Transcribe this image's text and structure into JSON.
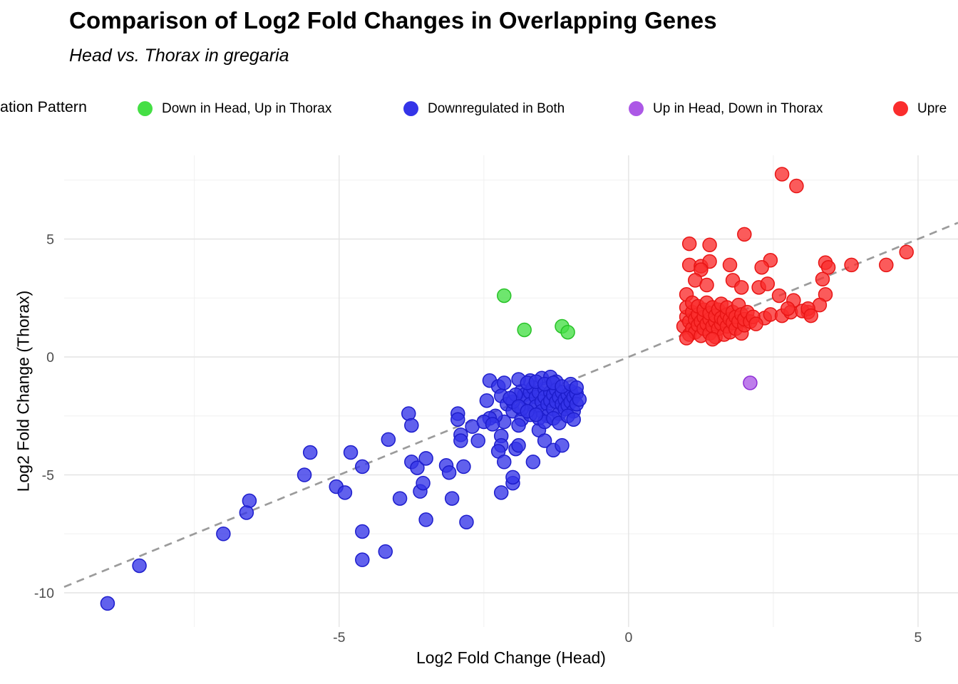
{
  "header": {
    "title": "Comparison of Log2 Fold Changes in Overlapping Genes",
    "subtitle": "Head vs. Thorax in gregaria"
  },
  "legend": {
    "title": "ation Pattern",
    "items": [
      {
        "label": "Down in Head, Up in Thorax",
        "color": "#45df45"
      },
      {
        "label": "Downregulated in Both",
        "color": "#3434e8"
      },
      {
        "label": "Up in Head, Down in Thorax",
        "color": "#ac58e6"
      },
      {
        "label": "Upre",
        "color": "#fa2d2d"
      }
    ]
  },
  "chart_data": {
    "type": "scatter",
    "title": "Comparison of Log2 Fold Changes in Overlapping Genes",
    "subtitle": "Head vs. Thorax in gregaria",
    "xlabel": "Log2 Fold Change (Head)",
    "ylabel": "Log2 Fold Change (Thorax)",
    "xlim": [
      -9.75,
      5.69
    ],
    "ylim": [
      -11.45,
      8.55
    ],
    "x_ticks": [
      -5,
      0,
      5
    ],
    "x_tick_labels": [
      "-5",
      "0",
      "5"
    ],
    "y_ticks": [
      5,
      0,
      -5,
      -10
    ],
    "y_tick_labels": [
      "5",
      "0",
      "-5",
      "-10"
    ],
    "x_minor": [
      -7.5,
      -2.5,
      2.5
    ],
    "y_minor": [
      7.5,
      2.5,
      -2.5,
      -7.5
    ],
    "grid": true,
    "legend_position": "top",
    "legend_title_visible": "ation Pattern",
    "reference_line": {
      "equation": "y = x",
      "style": "dashed",
      "color": "#9b9b9b"
    },
    "series": [
      {
        "name": "Down in Head, Up in Thorax",
        "color": "#45df45",
        "stroke": "#28c228",
        "points": [
          [
            -2.15,
            2.6
          ],
          [
            -1.8,
            1.15
          ],
          [
            -1.15,
            1.3
          ],
          [
            -1.05,
            1.05
          ]
        ]
      },
      {
        "name": "Downregulated in Both",
        "color": "#3434e8",
        "stroke": "#1d1dcc",
        "points": [
          [
            -9.0,
            -10.45
          ],
          [
            -8.45,
            -8.85
          ],
          [
            -7.0,
            -7.5
          ],
          [
            -6.55,
            -6.1
          ],
          [
            -6.6,
            -6.6
          ],
          [
            -5.5,
            -4.05
          ],
          [
            -5.6,
            -5.0
          ],
          [
            -5.05,
            -5.5
          ],
          [
            -4.9,
            -5.75
          ],
          [
            -4.8,
            -4.05
          ],
          [
            -4.6,
            -4.65
          ],
          [
            -4.6,
            -7.4
          ],
          [
            -4.6,
            -8.6
          ],
          [
            -4.2,
            -8.25
          ],
          [
            -3.95,
            -6.0
          ],
          [
            -3.6,
            -5.7
          ],
          [
            -3.05,
            -6.0
          ],
          [
            -3.5,
            -6.9
          ],
          [
            -2.8,
            -7.0
          ],
          [
            -2.2,
            -5.75
          ],
          [
            -2.0,
            -5.35
          ],
          [
            -4.15,
            -3.5
          ],
          [
            -3.8,
            -2.4
          ],
          [
            -3.75,
            -2.9
          ],
          [
            -3.75,
            -4.45
          ],
          [
            -3.65,
            -4.7
          ],
          [
            -3.5,
            -4.3
          ],
          [
            -3.55,
            -5.35
          ],
          [
            -3.15,
            -4.6
          ],
          [
            -3.1,
            -4.9
          ],
          [
            -2.85,
            -4.65
          ],
          [
            -2.95,
            -2.4
          ],
          [
            -2.95,
            -2.65
          ],
          [
            -2.9,
            -3.3
          ],
          [
            -2.9,
            -3.55
          ],
          [
            -2.7,
            -2.95
          ],
          [
            -2.6,
            -3.55
          ],
          [
            -2.45,
            -1.85
          ],
          [
            -2.4,
            -1.0
          ],
          [
            -2.25,
            -1.25
          ],
          [
            -2.15,
            -1.1
          ],
          [
            -2.2,
            -1.65
          ],
          [
            -2.1,
            -2.0
          ],
          [
            -2.0,
            -2.3
          ],
          [
            -2.15,
            -2.75
          ],
          [
            -2.2,
            -3.35
          ],
          [
            -2.2,
            -3.75
          ],
          [
            -2.25,
            -4.0
          ],
          [
            -2.15,
            -4.45
          ],
          [
            -1.95,
            -3.9
          ],
          [
            -1.9,
            -3.75
          ],
          [
            -1.85,
            -2.65
          ],
          [
            -1.9,
            -2.9
          ],
          [
            -1.7,
            -1.0
          ],
          [
            -1.5,
            -0.9
          ],
          [
            -1.35,
            -0.85
          ],
          [
            -1.25,
            -1.05
          ],
          [
            -1.55,
            -3.1
          ],
          [
            -1.45,
            -3.55
          ],
          [
            -1.3,
            -3.95
          ],
          [
            -1.15,
            -3.75
          ],
          [
            -1.65,
            -4.45
          ],
          [
            -2.0,
            -5.1
          ],
          [
            -1.85,
            -1.45
          ],
          [
            -1.8,
            -1.6
          ],
          [
            -1.75,
            -1.8
          ],
          [
            -1.7,
            -1.5
          ],
          [
            -1.7,
            -2.0
          ],
          [
            -1.65,
            -1.3
          ],
          [
            -1.6,
            -1.7
          ],
          [
            -1.6,
            -2.1
          ],
          [
            -1.55,
            -1.5
          ],
          [
            -1.5,
            -1.9
          ],
          [
            -1.5,
            -2.3
          ],
          [
            -1.45,
            -1.35
          ],
          [
            -1.45,
            -1.7
          ],
          [
            -1.4,
            -2.0
          ],
          [
            -1.4,
            -2.5
          ],
          [
            -1.35,
            -1.5
          ],
          [
            -1.35,
            -1.85
          ],
          [
            -1.3,
            -1.6
          ],
          [
            -1.3,
            -2.2
          ],
          [
            -1.25,
            -1.4
          ],
          [
            -1.25,
            -1.9
          ],
          [
            -1.2,
            -1.7
          ],
          [
            -1.2,
            -2.4
          ],
          [
            -1.15,
            -1.5
          ],
          [
            -1.15,
            -2.0
          ],
          [
            -1.1,
            -1.8
          ],
          [
            -1.1,
            -2.2
          ],
          [
            -1.05,
            -1.6
          ],
          [
            -1.05,
            -2.05
          ],
          [
            -1.0,
            -1.45
          ],
          [
            -1.0,
            -1.9
          ],
          [
            -0.95,
            -1.7
          ],
          [
            -0.95,
            -2.3
          ],
          [
            -0.9,
            -1.55
          ],
          [
            -0.9,
            -2.0
          ],
          [
            -0.85,
            -1.8
          ],
          [
            -1.55,
            -2.6
          ],
          [
            -1.45,
            -2.75
          ],
          [
            -1.3,
            -2.6
          ],
          [
            -1.2,
            -2.8
          ],
          [
            -1.05,
            -2.5
          ],
          [
            -0.95,
            -2.65
          ],
          [
            -1.7,
            -2.45
          ],
          [
            -1.85,
            -2.2
          ],
          [
            -2.0,
            -1.9
          ],
          [
            -1.95,
            -1.6
          ],
          [
            -2.05,
            -1.75
          ],
          [
            -1.9,
            -2.1
          ],
          [
            -1.75,
            -2.3
          ],
          [
            -1.6,
            -2.45
          ],
          [
            -2.3,
            -2.5
          ],
          [
            -2.4,
            -2.6
          ],
          [
            -2.5,
            -2.75
          ],
          [
            -2.35,
            -2.85
          ],
          [
            -1.9,
            -0.95
          ],
          [
            -1.75,
            -1.1
          ],
          [
            -1.6,
            -1.05
          ],
          [
            -1.45,
            -1.15
          ],
          [
            -1.3,
            -1.1
          ],
          [
            -1.15,
            -1.25
          ],
          [
            -1.0,
            -1.15
          ],
          [
            -0.9,
            -1.3
          ]
        ]
      },
      {
        "name": "Up in Head, Down in Thorax",
        "color": "#ac58e6",
        "stroke": "#8f2ed6",
        "points": [
          [
            2.1,
            -1.1
          ]
        ]
      },
      {
        "name": "Upre",
        "color": "#fa2d2d",
        "stroke": "#e81414",
        "points": [
          [
            2.65,
            7.75
          ],
          [
            2.9,
            7.25
          ],
          [
            2.0,
            5.2
          ],
          [
            1.05,
            4.8
          ],
          [
            1.4,
            4.75
          ],
          [
            1.05,
            3.9
          ],
          [
            1.25,
            3.85
          ],
          [
            1.4,
            4.05
          ],
          [
            1.75,
            3.9
          ],
          [
            1.25,
            3.7
          ],
          [
            1.15,
            3.25
          ],
          [
            1.35,
            3.05
          ],
          [
            1.8,
            3.25
          ],
          [
            1.95,
            2.95
          ],
          [
            1.0,
            2.65
          ],
          [
            2.45,
            4.1
          ],
          [
            2.3,
            3.8
          ],
          [
            2.25,
            2.95
          ],
          [
            2.4,
            3.1
          ],
          [
            2.6,
            2.6
          ],
          [
            2.85,
            2.4
          ],
          [
            3.4,
            2.65
          ],
          [
            3.4,
            4.0
          ],
          [
            3.45,
            3.8
          ],
          [
            3.85,
            3.9
          ],
          [
            4.45,
            3.9
          ],
          [
            4.8,
            4.45
          ],
          [
            3.35,
            3.3
          ],
          [
            3.3,
            2.2
          ],
          [
            3.1,
            1.9
          ],
          [
            2.35,
            1.65
          ],
          [
            2.45,
            1.8
          ],
          [
            2.65,
            1.75
          ],
          [
            2.8,
            1.9
          ],
          [
            3.0,
            1.95
          ],
          [
            3.1,
            2.05
          ],
          [
            3.15,
            1.75
          ],
          [
            2.75,
            2.05
          ],
          [
            0.95,
            1.3
          ],
          [
            1.0,
            1.7
          ],
          [
            1.0,
            2.1
          ],
          [
            1.05,
            0.95
          ],
          [
            1.05,
            1.5
          ],
          [
            1.1,
            1.2
          ],
          [
            1.1,
            1.9
          ],
          [
            1.1,
            2.3
          ],
          [
            1.15,
            1.05
          ],
          [
            1.15,
            1.6
          ],
          [
            1.2,
            1.35
          ],
          [
            1.2,
            1.8
          ],
          [
            1.2,
            2.15
          ],
          [
            1.25,
            0.9
          ],
          [
            1.25,
            1.5
          ],
          [
            1.3,
            1.2
          ],
          [
            1.3,
            1.7
          ],
          [
            1.3,
            2.0
          ],
          [
            1.35,
            1.4
          ],
          [
            1.35,
            2.3
          ],
          [
            1.4,
            1.0
          ],
          [
            1.4,
            1.6
          ],
          [
            1.4,
            1.85
          ],
          [
            1.45,
            1.3
          ],
          [
            1.45,
            2.1
          ],
          [
            1.5,
            0.85
          ],
          [
            1.5,
            1.5
          ],
          [
            1.5,
            1.75
          ],
          [
            1.55,
            1.2
          ],
          [
            1.55,
            2.0
          ],
          [
            1.6,
            1.4
          ],
          [
            1.6,
            1.65
          ],
          [
            1.6,
            2.25
          ],
          [
            1.65,
            0.95
          ],
          [
            1.65,
            1.55
          ],
          [
            1.7,
            1.3
          ],
          [
            1.7,
            1.8
          ],
          [
            1.7,
            2.1
          ],
          [
            1.75,
            1.05
          ],
          [
            1.75,
            1.6
          ],
          [
            1.8,
            1.45
          ],
          [
            1.8,
            1.9
          ],
          [
            1.85,
            1.2
          ],
          [
            1.85,
            1.7
          ],
          [
            1.9,
            1.5
          ],
          [
            1.9,
            2.2
          ],
          [
            1.95,
            1.0
          ],
          [
            1.95,
            1.8
          ],
          [
            2.0,
            1.35
          ],
          [
            2.0,
            1.6
          ],
          [
            2.05,
            1.9
          ],
          [
            2.1,
            1.5
          ],
          [
            2.15,
            1.7
          ],
          [
            2.2,
            1.4
          ],
          [
            1.45,
            0.75
          ],
          [
            1.0,
            0.8
          ]
        ]
      }
    ]
  }
}
